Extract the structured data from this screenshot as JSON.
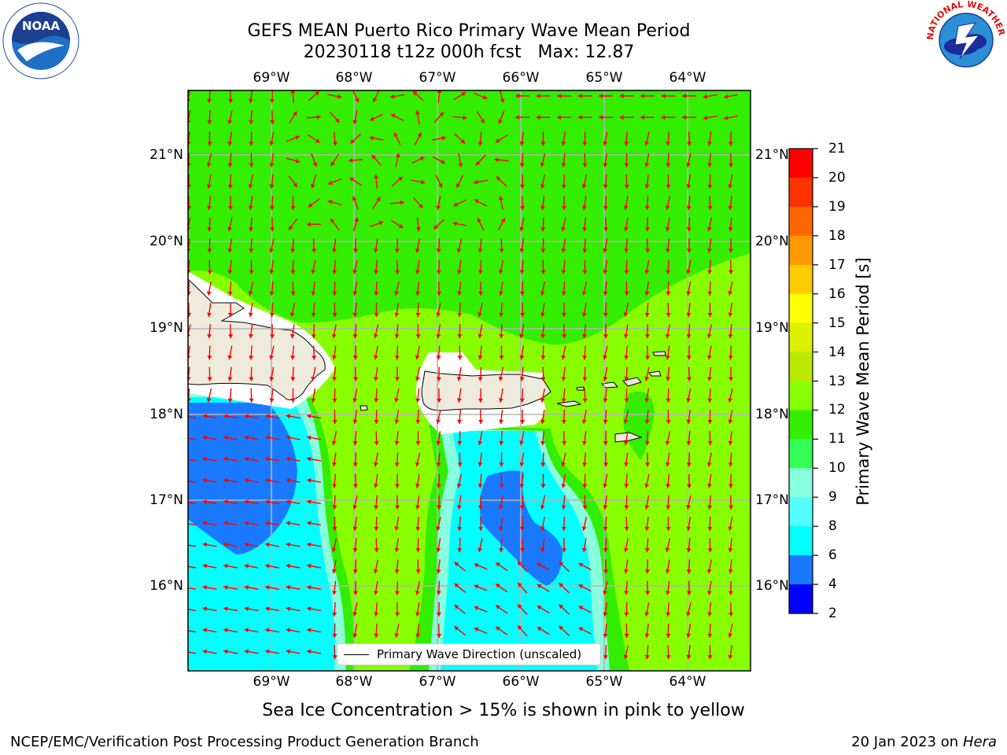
{
  "header": {
    "title_line1": "GEFS MEAN Puerto Rico Primary Wave Mean Period",
    "title_line2": "20230118 t12z 000h fcst   Max: 12.87"
  },
  "map": {
    "lon_labels": [
      "69°W",
      "68°W",
      "67°W",
      "66°W",
      "65°W",
      "64°W"
    ],
    "lat_labels": [
      "21°N",
      "20°N",
      "19°N",
      "18°N",
      "17°N",
      "16°N"
    ],
    "legend_label": "Primary Wave Direction (unscaled)",
    "arrow_color": "#ff0000",
    "land_color": "#efebdc"
  },
  "colorbar": {
    "label": "Primary Wave Mean Period [s]",
    "ticks": [
      "21",
      "20",
      "19",
      "18",
      "17",
      "16",
      "15",
      "14",
      "13",
      "12",
      "11",
      "10",
      "9",
      "8",
      "6",
      "4",
      "2"
    ],
    "colors": [
      "#ff0000",
      "#ff3300",
      "#ff6600",
      "#ff9900",
      "#ffcc00",
      "#ffff00",
      "#ddf000",
      "#bbe800",
      "#88ff00",
      "#33ee00",
      "#33ff55",
      "#88ffdd",
      "#55ffff",
      "#00ffff",
      "#1a7aff",
      "#0000ff"
    ]
  },
  "subtitle": "Sea Ice Concentration > 15% is shown in pink to yellow",
  "footer": {
    "left": "NCEP/EMC/Verification Post Processing Product Generation Branch",
    "right_date": "20 Jan 2023 on",
    "right_machine": "Hera"
  },
  "logos": {
    "left": "NOAA",
    "right": "NATIONAL WEATHER SERVICE"
  }
}
